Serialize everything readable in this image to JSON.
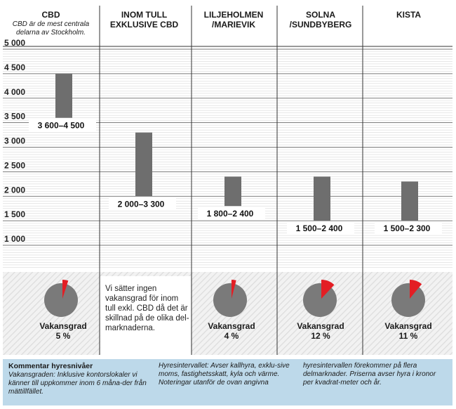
{
  "headers": [
    {
      "title": "CBD",
      "subtitle": "CBD är de mest centrala delarna av Stockholm."
    },
    {
      "title": "INOM TULL EXKLUSIVE CBD",
      "subtitle": ""
    },
    {
      "title": "LILJEHOLMEN /MARIEVIK",
      "subtitle": ""
    },
    {
      "title": "SOLNA /SUNDBYBERG",
      "subtitle": ""
    },
    {
      "title": "KISTA",
      "subtitle": ""
    }
  ],
  "chart_data": {
    "type": "bar",
    "subtype": "floating-range",
    "categories": [
      "CBD",
      "INOM TULL EXKLUSIVE CBD",
      "LILJEHOLMEN /MARIEVIK",
      "SOLNA /SUNDBYBERG",
      "KISTA"
    ],
    "ranges": [
      [
        3600,
        4500
      ],
      [
        2000,
        3300
      ],
      [
        1800,
        2400
      ],
      [
        1500,
        2400
      ],
      [
        1500,
        2300
      ]
    ],
    "range_labels": [
      "3 600–4 500",
      "2 000–3 300",
      "1 800–2 400",
      "1 500–2 400",
      "1 500–2 300"
    ],
    "ylim": [
      500,
      5000
    ],
    "yticks": [
      1000,
      1500,
      2000,
      2500,
      3000,
      3500,
      4000,
      4500,
      5000
    ],
    "ytick_labels": [
      "1 000",
      "1 500",
      "2 000",
      "2 500",
      "3 000",
      "3 500",
      "4 000",
      "4 500",
      "5 000"
    ],
    "grid": true,
    "bar_color": "#6e6e6e",
    "vacancy": [
      {
        "label": "Vakansgrad",
        "value_text": "5 %",
        "fraction": 0.05
      },
      null,
      {
        "label": "Vakansgrad",
        "value_text": "4 %",
        "fraction": 0.04
      },
      {
        "label": "Vakansgrad",
        "value_text": "12 %",
        "fraction": 0.12
      },
      {
        "label": "Vakansgrad",
        "value_text": "11 %",
        "fraction": 0.11
      }
    ],
    "pie_color": "#7a7a7a",
    "pie_highlight_color": "#e31e24"
  },
  "note_text": "Vi sätter ingen vakansgrad för inom tull exkl. CBD då det är skillnad på de olika del-marknaderna.",
  "comment": {
    "title": "Kommentar hyresnivåer",
    "col1": "Vakansgraden: Inklusive kontorslokaler vi känner till uppkommer inom 6 måna-der från mättillfället.",
    "col2": "Hyresintervallet: Avser kallhyra, exklu-sive moms, fastighetsskatt, kyla och värme. Noteringar utanför de ovan angivna",
    "col3": "hyresintervallen förekommer på flera delmarknader. Priserna avser hyra i kronor per kvadrat-meter och år.",
    "background": "#bdd9ea"
  }
}
